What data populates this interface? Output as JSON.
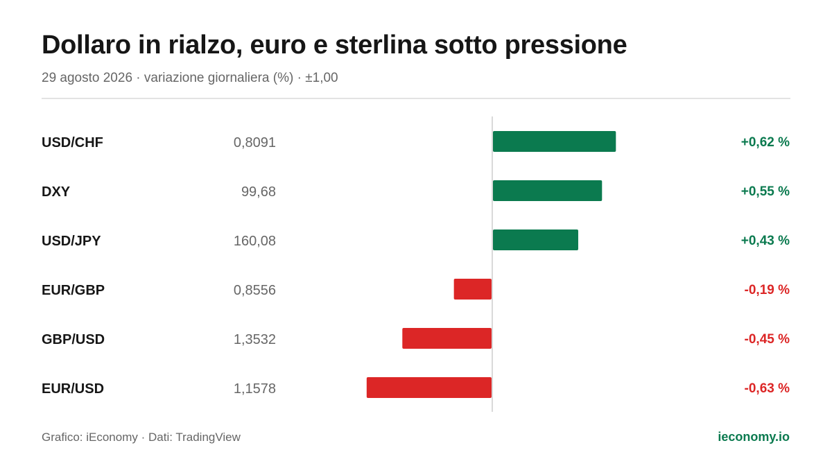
{
  "header": {
    "title": "Dollaro in rialzo, euro e sterlina sotto pressione",
    "subtitle": "29 agosto 2026 · variazione giornaliera (%) · ±1,00"
  },
  "footer": {
    "source": "Grafico: iEconomy · Dati: TradingView",
    "brand": "ieconomy.io"
  },
  "colors": {
    "positive": "#0b7a4f",
    "negative": "#dc2626",
    "label": "#161616",
    "price": "#666666",
    "axis": "#d9d9d9"
  },
  "chart_data": {
    "type": "bar",
    "orientation": "horizontal",
    "categories": [
      "USD/CHF",
      "DXY",
      "USD/JPY",
      "EUR/GBP",
      "GBP/USD",
      "EUR/USD"
    ],
    "prices": [
      "0,8091",
      "99,68",
      "160,08",
      "0,8556",
      "1,3532",
      "1,1578"
    ],
    "values": [
      0.62,
      0.55,
      0.43,
      -0.19,
      -0.45,
      -0.63
    ],
    "value_labels": [
      "+0,62 %",
      "+0,55 %",
      "+0,43 %",
      "-0,19 %",
      "-0,45 %",
      "-0,63 %"
    ],
    "xlim": [
      -1.0,
      1.0
    ],
    "grid": false,
    "legend": "none"
  }
}
